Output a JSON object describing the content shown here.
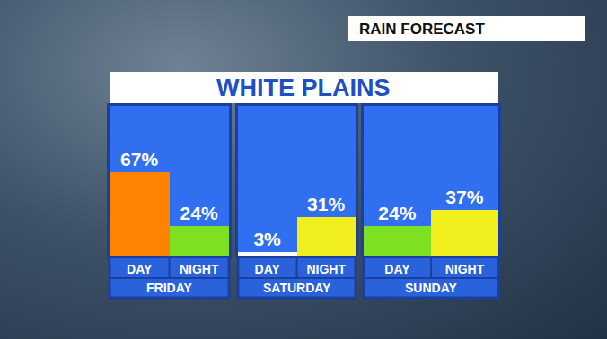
{
  "header": "RAIN FORECAST",
  "title": "WHITE PLAINS",
  "chart_data": [
    {
      "type": "bar",
      "title": "FRIDAY",
      "categories": [
        "DAY",
        "NIGHT"
      ],
      "values": [
        67,
        24
      ],
      "value_labels": [
        "67%",
        "24%"
      ],
      "colors": [
        "#ff8200",
        "#7ee022"
      ],
      "data_labels": true,
      "ylim": [
        0,
        120
      ],
      "yticks": [],
      "tick_labels": "x",
      "grid": false
    },
    {
      "type": "bar",
      "title": "SATURDAY",
      "categories": [
        "DAY",
        "NIGHT"
      ],
      "values": [
        3,
        31
      ],
      "value_labels": [
        "3%",
        "31%"
      ],
      "colors": [
        "#ffffff",
        "#f2ef1e"
      ],
      "data_labels": true,
      "ylim": [
        0,
        120
      ],
      "yticks": [],
      "tick_labels": "x",
      "grid": false
    },
    {
      "type": "bar",
      "title": "SUNDAY",
      "categories": [
        "DAY",
        "NIGHT"
      ],
      "values": [
        24,
        37
      ],
      "value_labels": [
        "24%",
        "37%"
      ],
      "colors": [
        "#7ee022",
        "#f2ef1e"
      ],
      "data_labels": true,
      "ylim": [
        0,
        120
      ],
      "yticks": [],
      "tick_labels": "x",
      "grid": false
    }
  ]
}
